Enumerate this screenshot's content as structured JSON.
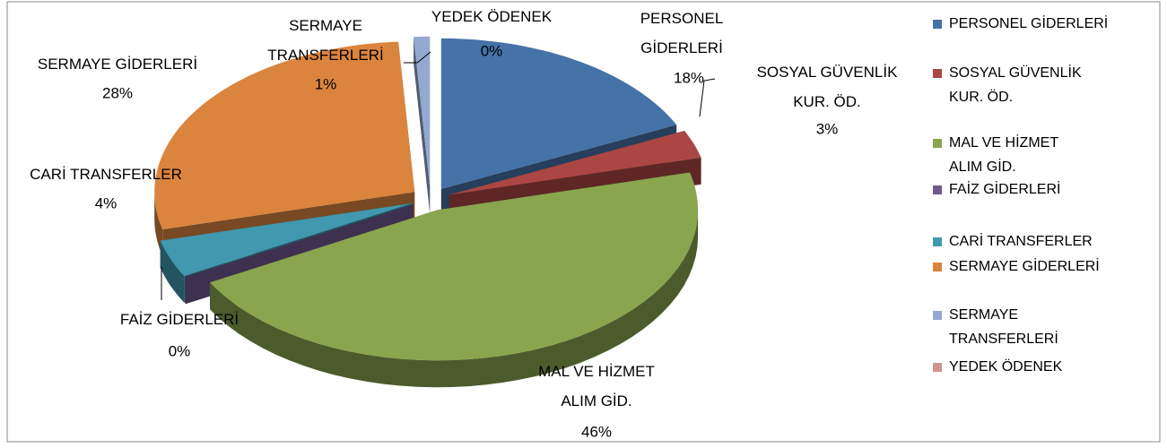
{
  "chart_data": {
    "type": "pie3d",
    "categories": [
      "PERSONEL GİDERLERİ",
      "SOSYAL GÜVENLİK KUR. ÖD.",
      "MAL VE HİZMET ALIM GİD.",
      "FAİZ GİDERLERİ",
      "CARİ TRANSFERLER",
      "SERMAYE GİDERLERİ",
      "SERMAYE TRANSFERLERİ",
      "YEDEK ÖDENEK"
    ],
    "values": [
      18,
      3,
      46,
      0,
      4,
      28,
      1,
      0
    ],
    "value_labels": [
      "18%",
      "3%",
      "46%",
      "0%",
      "4%",
      "28%",
      "1%",
      "0%"
    ],
    "colors": [
      "#4572a7",
      "#aa4643",
      "#89a54e",
      "#71588f",
      "#4198af",
      "#db843d",
      "#93a9cf",
      "#d19392"
    ],
    "legend": "right"
  }
}
